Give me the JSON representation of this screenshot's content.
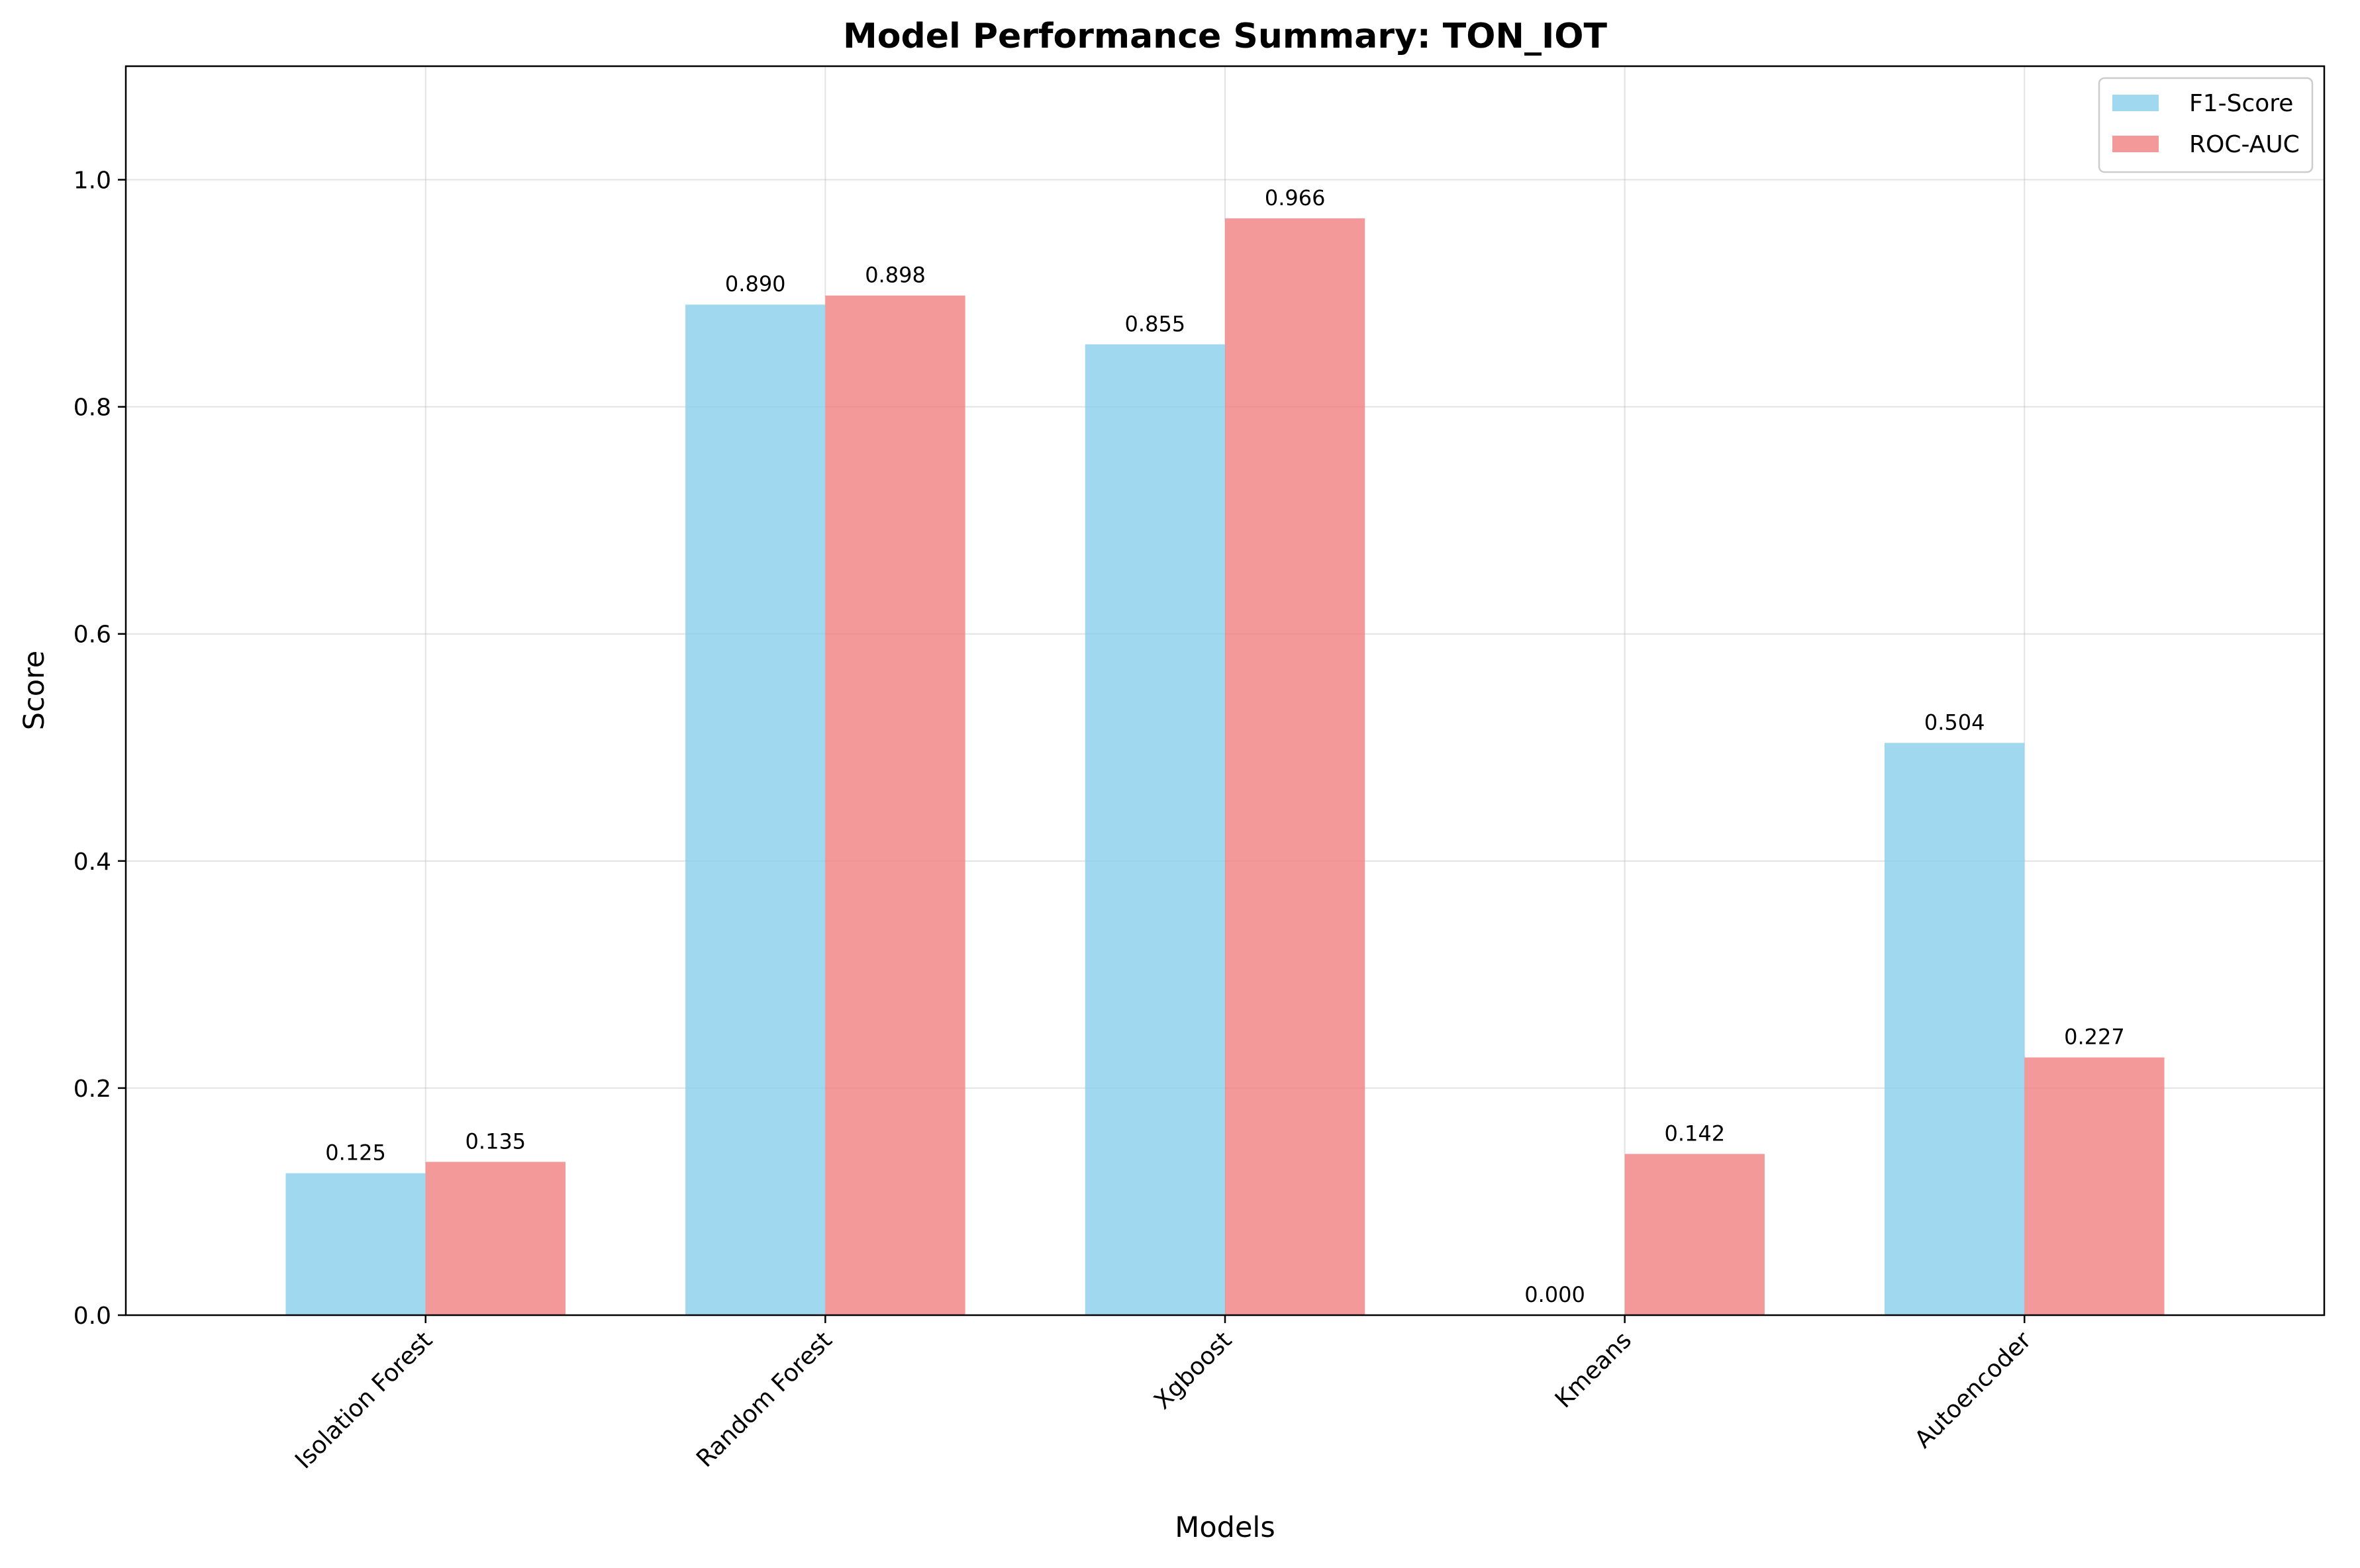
{
  "chart_data": {
    "type": "bar",
    "title": "Model Performance Summary: TON_IOT",
    "xlabel": "Models",
    "ylabel": "Score",
    "ylim": [
      0,
      1.1
    ],
    "yticks": [
      0.0,
      0.2,
      0.4,
      0.6,
      0.8,
      1.0
    ],
    "ytick_labels": [
      "0.0",
      "0.2",
      "0.4",
      "0.6",
      "0.8",
      "1.0"
    ],
    "categories": [
      "Isolation Forest",
      "Random Forest",
      "Xgboost",
      "Kmeans",
      "Autoencoder"
    ],
    "series": [
      {
        "name": "F1-Score",
        "color": "#87ceeb",
        "values": [
          0.125,
          0.89,
          0.855,
          0.0,
          0.504
        ],
        "value_labels": [
          "0.125",
          "0.890",
          "0.855",
          "0.000",
          "0.504"
        ]
      },
      {
        "name": "ROC-AUC",
        "color": "#f08080",
        "values": [
          0.135,
          0.898,
          0.966,
          0.142,
          0.227
        ],
        "value_labels": [
          "0.135",
          "0.898",
          "0.966",
          "0.142",
          "0.227"
        ]
      }
    ],
    "grid": true,
    "legend_position": "top-right",
    "x_tick_rotation": 45
  }
}
